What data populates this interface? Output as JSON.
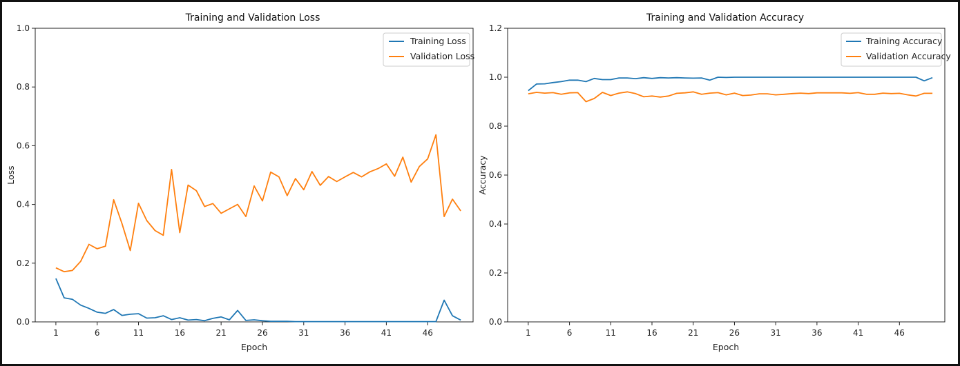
{
  "colors": {
    "training": "#1f77b4",
    "validation": "#ff7f0e"
  },
  "chart_data": [
    {
      "type": "line",
      "title": "Training and Validation Loss",
      "xlabel": "Epoch",
      "ylabel": "Loss",
      "xlim": [
        -1.5,
        51.5
      ],
      "ylim": [
        0,
        1.0
      ],
      "xticks": [
        1,
        6,
        11,
        16,
        21,
        26,
        31,
        36,
        41,
        46
      ],
      "yticks": [
        "0.0",
        "0.2",
        "0.4",
        "0.6",
        "0.8",
        "1.0"
      ],
      "legend": "top-right",
      "grid": false,
      "x": [
        1,
        2,
        3,
        4,
        5,
        6,
        7,
        8,
        9,
        10,
        11,
        12,
        13,
        14,
        15,
        16,
        17,
        18,
        19,
        20,
        21,
        22,
        23,
        24,
        25,
        26,
        27,
        28,
        29,
        30,
        31,
        32,
        33,
        34,
        35,
        36,
        37,
        38,
        39,
        40,
        41,
        42,
        43,
        44,
        45,
        46,
        47,
        48,
        49,
        50
      ],
      "series": [
        {
          "name": "Training Loss",
          "color": "#1f77b4",
          "values": [
            0.148,
            0.082,
            0.077,
            0.057,
            0.046,
            0.033,
            0.029,
            0.042,
            0.022,
            0.026,
            0.028,
            0.013,
            0.014,
            0.021,
            0.008,
            0.014,
            0.006,
            0.008,
            0.004,
            0.012,
            0.017,
            0.007,
            0.039,
            0.005,
            0.007,
            0.004,
            0.002,
            0.002,
            0.002,
            0.001,
            0.001,
            0.001,
            0.001,
            0.001,
            0.001,
            0.001,
            0.001,
            0.001,
            0.001,
            0.001,
            0.001,
            0.001,
            0.001,
            0.001,
            0.001,
            0.001,
            0.001,
            0.074,
            0.021,
            0.006
          ]
        },
        {
          "name": "Validation Loss",
          "color": "#ff7f0e",
          "values": [
            0.184,
            0.171,
            0.175,
            0.206,
            0.264,
            0.249,
            0.258,
            0.416,
            0.335,
            0.243,
            0.404,
            0.345,
            0.311,
            0.295,
            0.519,
            0.304,
            0.466,
            0.447,
            0.393,
            0.403,
            0.37,
            0.385,
            0.4,
            0.359,
            0.463,
            0.412,
            0.51,
            0.494,
            0.43,
            0.488,
            0.45,
            0.512,
            0.465,
            0.495,
            0.478,
            0.494,
            0.509,
            0.494,
            0.511,
            0.522,
            0.538,
            0.496,
            0.561,
            0.476,
            0.529,
            0.555,
            0.637,
            0.359,
            0.418,
            0.378
          ]
        }
      ]
    },
    {
      "type": "line",
      "title": "Training and Validation Accuracy",
      "xlabel": "Epoch",
      "ylabel": "Accuracy",
      "xlim": [
        -1.5,
        51.5
      ],
      "ylim": [
        0,
        1.2
      ],
      "xticks": [
        1,
        6,
        11,
        16,
        21,
        26,
        31,
        36,
        41,
        46
      ],
      "yticks": [
        "0.0",
        "0.2",
        "0.4",
        "0.6",
        "0.8",
        "1.0",
        "1.2"
      ],
      "legend": "top-right",
      "grid": false,
      "x": [
        1,
        2,
        3,
        4,
        5,
        6,
        7,
        8,
        9,
        10,
        11,
        12,
        13,
        14,
        15,
        16,
        17,
        18,
        19,
        20,
        21,
        22,
        23,
        24,
        25,
        26,
        27,
        28,
        29,
        30,
        31,
        32,
        33,
        34,
        35,
        36,
        37,
        38,
        39,
        40,
        41,
        42,
        43,
        44,
        45,
        46,
        47,
        48,
        49,
        50
      ],
      "series": [
        {
          "name": "Training Accuracy",
          "color": "#1f77b4",
          "values": [
            0.945,
            0.972,
            0.973,
            0.978,
            0.982,
            0.988,
            0.988,
            0.982,
            0.995,
            0.99,
            0.99,
            0.997,
            0.997,
            0.994,
            0.998,
            0.995,
            0.998,
            0.997,
            0.998,
            0.997,
            0.996,
            0.997,
            0.988,
            1.0,
            0.999,
            1.0,
            1.0,
            1.0,
            1.0,
            1.0,
            1.0,
            1.0,
            1.0,
            1.0,
            1.0,
            1.0,
            1.0,
            1.0,
            1.0,
            1.0,
            1.0,
            1.0,
            1.0,
            1.0,
            1.0,
            1.0,
            1.0,
            1.0,
            0.985,
            0.998
          ]
        },
        {
          "name": "Validation Accuracy",
          "color": "#ff7f0e",
          "values": [
            0.932,
            0.938,
            0.935,
            0.937,
            0.93,
            0.936,
            0.937,
            0.9,
            0.913,
            0.938,
            0.925,
            0.935,
            0.94,
            0.933,
            0.92,
            0.923,
            0.919,
            0.923,
            0.934,
            0.936,
            0.94,
            0.93,
            0.935,
            0.937,
            0.928,
            0.935,
            0.925,
            0.927,
            0.932,
            0.932,
            0.928,
            0.93,
            0.933,
            0.935,
            0.933,
            0.936,
            0.936,
            0.936,
            0.936,
            0.934,
            0.937,
            0.93,
            0.93,
            0.935,
            0.933,
            0.934,
            0.928,
            0.923,
            0.934,
            0.934
          ]
        }
      ]
    }
  ]
}
